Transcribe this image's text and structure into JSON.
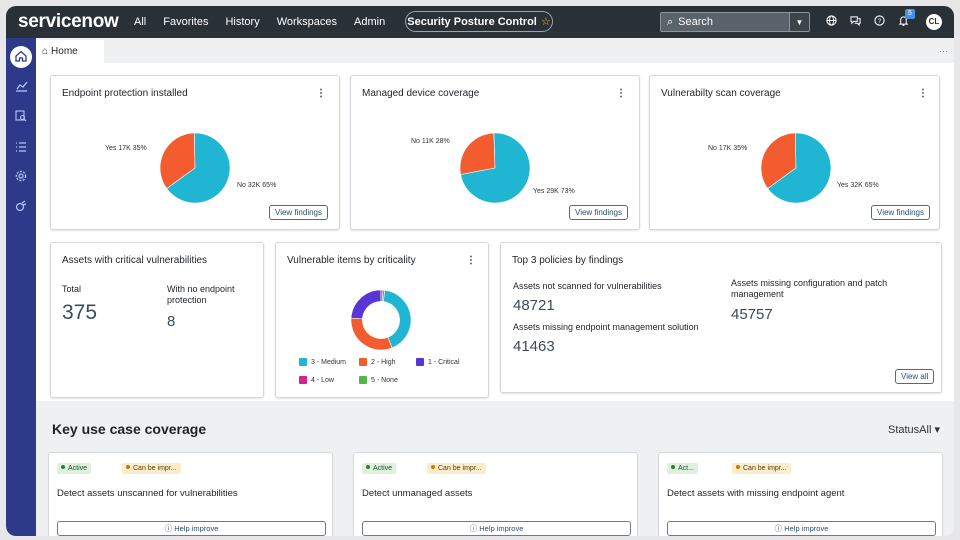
{
  "app": {
    "logo": "servicenow",
    "title": "Security Posture Control",
    "title_star": "☆"
  },
  "nav": [
    "All",
    "Favorites",
    "History",
    "Workspaces",
    "Admin"
  ],
  "search": {
    "label": "Search"
  },
  "header_icons": [
    "globe-icon",
    "chat-icon",
    "help-icon",
    "bell-icon"
  ],
  "notifications": {
    "count": "5"
  },
  "user": {
    "initials": "CL"
  },
  "tabs": [
    {
      "label": "Home"
    }
  ],
  "tab_more": "···",
  "colors": {
    "teal": "#1fb5d3",
    "orange": "#f25c2e",
    "purple": "#5a35d6",
    "pink": "#d2248d",
    "green": "#52b547"
  },
  "cards": {
    "endpoint": {
      "title": "Endpoint protection installed",
      "menu": "⋮",
      "chart_data": {
        "type": "pie",
        "categories": [
          "Yes",
          "No"
        ],
        "values": [
          17,
          32
        ],
        "percent": [
          35,
          65
        ],
        "labels": [
          "Yes  17K  35%",
          "No  32K  65%"
        ]
      },
      "action": "View findings"
    },
    "managed": {
      "title": "Managed device coverage",
      "menu": "⋮",
      "chart_data": {
        "type": "pie",
        "categories": [
          "No",
          "Yes"
        ],
        "values": [
          11,
          29
        ],
        "percent": [
          28,
          73
        ],
        "labels": [
          "No  11K  28%",
          "Yes  29K  73%"
        ]
      },
      "action": "View findings"
    },
    "vuln_scan": {
      "title": "Vulnerabilty scan coverage",
      "menu": "⋮",
      "chart_data": {
        "type": "pie",
        "categories": [
          "No",
          "Yes"
        ],
        "values": [
          17,
          32
        ],
        "percent": [
          35,
          65
        ],
        "labels": [
          "No  17K  35%",
          "Yes  32K  65%"
        ]
      },
      "action": "View findings"
    },
    "critical": {
      "title": "Assets with critical vulnerabilities",
      "total_label": "Total",
      "total_value": "375",
      "noep_label": "With no endpoint protection",
      "noep_value": "8"
    },
    "criticality": {
      "title": "Vulnerable items by criticality",
      "menu": "⋮",
      "chart_data": {
        "type": "pie",
        "categories": [
          "3 - Medium",
          "2 - High",
          "1 - Critical",
          "4 - Low",
          "5 - None"
        ],
        "values": [
          42,
          32,
          24,
          1,
          1
        ]
      },
      "legend": [
        "3 - Medium",
        "2 - High",
        "1 - Critical",
        "4 - Low",
        "5 - None"
      ]
    },
    "policies": {
      "title": "Top 3 policies by findings",
      "items": [
        {
          "label": "Assets not scanned for vulnerabilities",
          "value": "48721"
        },
        {
          "label": "Assets missing configuration and patch management",
          "value": "45757"
        },
        {
          "label": "Assets missing endpoint management solution",
          "value": "41463"
        }
      ],
      "action": "View all"
    }
  },
  "key_use": {
    "title": "Key use case coverage",
    "status_label": "Status",
    "status_value": "All",
    "caret": "▾",
    "cards": [
      {
        "badge_active": "Active",
        "badge_can": "Can be impr...",
        "title": "Detect assets unscanned for vulnerabilities",
        "help": "Help improve"
      },
      {
        "badge_active": "Active",
        "badge_can": "Can be impr...",
        "title": "Detect unmanaged assets",
        "help": "Help improve"
      },
      {
        "badge_active": "Act...",
        "badge_can": "Can be impr...",
        "title": "Detect assets with missing endpoint agent",
        "help": "Help improve"
      }
    ]
  }
}
